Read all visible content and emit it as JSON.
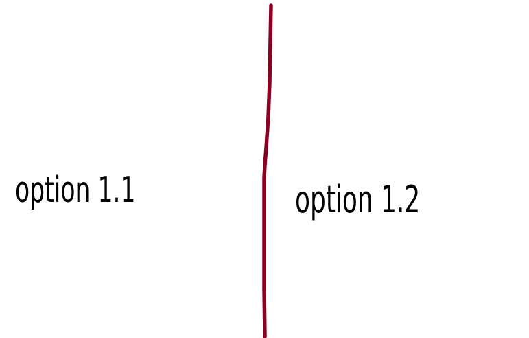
{
  "options": {
    "left": {
      "label": "option 1.1"
    },
    "right": {
      "label": "option 1.2"
    }
  },
  "colors": {
    "divider": "#8b0020",
    "text": "#000000",
    "background": "#ffffff"
  }
}
